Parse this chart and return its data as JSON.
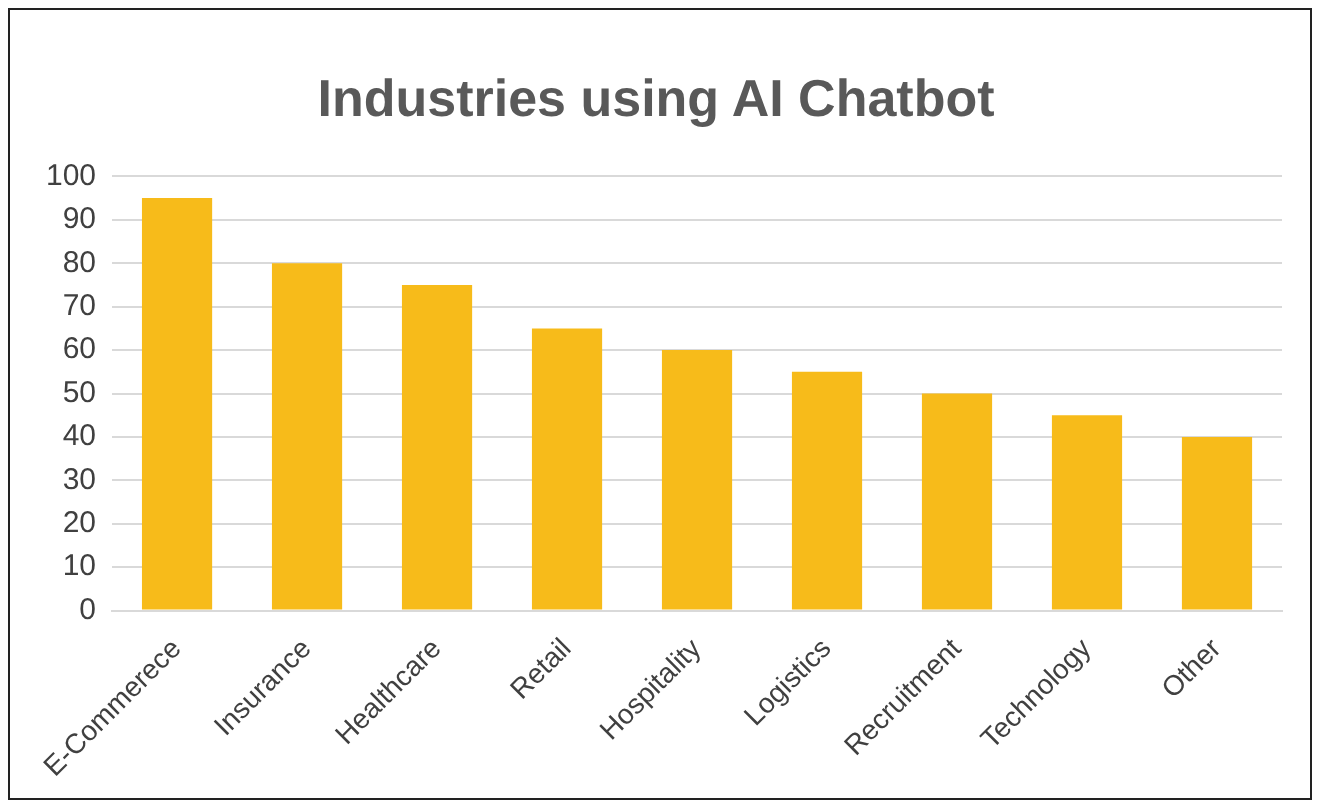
{
  "chart_data": {
    "type": "bar",
    "title": "Industries using AI Chatbot",
    "categories": [
      "E-Commerece",
      "Insurance",
      "Healthcare",
      "Retail",
      "Hospitality",
      "Logistics",
      "Recruitment",
      "Technology",
      "Other"
    ],
    "values": [
      95,
      80,
      75,
      65,
      60,
      55,
      50,
      45,
      40
    ],
    "color": "#f7bb1a",
    "ylim": [
      0,
      100
    ],
    "yticks": [
      0,
      10,
      20,
      30,
      40,
      50,
      60,
      70,
      80,
      90,
      100
    ],
    "grid": "y"
  }
}
